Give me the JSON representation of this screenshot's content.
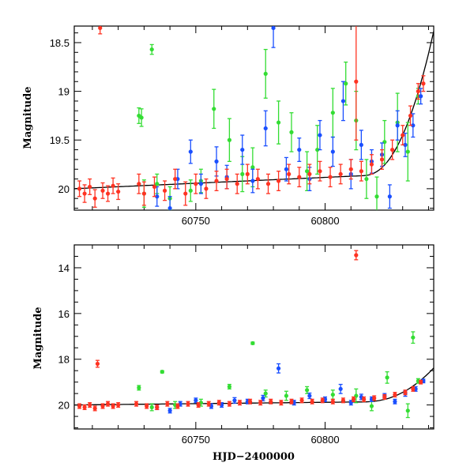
{
  "colors": {
    "green": "#33dd33",
    "blue": "#1a4fff",
    "red": "#ff3322",
    "model": "#000000"
  },
  "chart_data": [
    {
      "type": "scatter",
      "panel": "top",
      "ylabel": "Magnitude",
      "xlabel": "",
      "xlim": [
        60703,
        60842
      ],
      "ylim": [
        20.22,
        18.33
      ],
      "y_inverted": true,
      "grid": false,
      "xticks": [
        {
          "v": 60750,
          "label": "60750"
        },
        {
          "v": 60800,
          "label": "60800"
        }
      ],
      "yticks": [
        {
          "v": 18.5,
          "label": "18.5"
        },
        {
          "v": 19,
          "label": "19"
        },
        {
          "v": 19.5,
          "label": "19.5"
        },
        {
          "v": 20,
          "label": "20"
        }
      ],
      "series": [
        {
          "color": "green",
          "points": [
            [
              60728,
              19.25,
              0.08
            ],
            [
              60729,
              19.27,
              0.09
            ],
            [
              60733,
              18.57,
              0.05
            ],
            [
              60730,
              20.05,
              0.14
            ],
            [
              60735,
              19.95,
              0.1
            ],
            [
              60740,
              20.1,
              0.12
            ],
            [
              60748,
              20.02,
              0.11
            ],
            [
              60752,
              19.92,
              0.12
            ],
            [
              60757,
              19.18,
              0.2
            ],
            [
              60763,
              19.5,
              0.22
            ],
            [
              60768,
              19.85,
              0.18
            ],
            [
              60772,
              19.78,
              0.2
            ],
            [
              60777,
              18.82,
              0.25
            ],
            [
              60782,
              19.32,
              0.22
            ],
            [
              60787,
              19.42,
              0.2
            ],
            [
              60793,
              19.82,
              0.2
            ],
            [
              60797,
              19.6,
              0.25
            ],
            [
              60803,
              19.22,
              0.25
            ],
            [
              60808,
              18.92,
              0.22
            ],
            [
              60812,
              19.3,
              0.3
            ],
            [
              60816,
              19.9,
              0.2
            ],
            [
              60820,
              20.08,
              0.2
            ],
            [
              60823,
              19.52,
              0.22
            ],
            [
              60828,
              19.32,
              0.3
            ],
            [
              60832,
              19.62,
              0.3
            ],
            [
              60836,
              19.05,
              0.08
            ]
          ]
        },
        {
          "color": "blue",
          "points": [
            [
              60735,
              20.08,
              0.1
            ],
            [
              60740,
              20.2,
              0.12
            ],
            [
              60743,
              19.9,
              0.1
            ],
            [
              60748,
              19.62,
              0.12
            ],
            [
              60752,
              19.95,
              0.1
            ],
            [
              60758,
              19.72,
              0.15
            ],
            [
              60762,
              19.88,
              0.12
            ],
            [
              60768,
              19.6,
              0.15
            ],
            [
              60772,
              19.92,
              0.12
            ],
            [
              60777,
              19.38,
              0.18
            ],
            [
              60780,
              18.35,
              0.2
            ],
            [
              60785,
              19.8,
              0.12
            ],
            [
              60790,
              19.6,
              0.12
            ],
            [
              60794,
              19.9,
              0.12
            ],
            [
              60798,
              19.45,
              0.15
            ],
            [
              60803,
              19.62,
              0.15
            ],
            [
              60807,
              19.1,
              0.2
            ],
            [
              60810,
              19.85,
              0.15
            ],
            [
              60814,
              19.55,
              0.15
            ],
            [
              60818,
              19.72,
              0.12
            ],
            [
              60822,
              19.65,
              0.12
            ],
            [
              60825,
              20.08,
              0.12
            ],
            [
              60828,
              19.35,
              0.15
            ],
            [
              60831,
              19.55,
              0.12
            ],
            [
              60834,
              19.35,
              0.12
            ],
            [
              60837,
              19.05,
              0.08
            ]
          ]
        },
        {
          "color": "red",
          "points": [
            [
              60705,
              20.0,
              0.08
            ],
            [
              60707,
              20.05,
              0.09
            ],
            [
              60709,
              19.98,
              0.08
            ],
            [
              60711,
              20.1,
              0.09
            ],
            [
              60713,
              18.35,
              0.06
            ],
            [
              60714,
              20.02,
              0.08
            ],
            [
              60716,
              20.05,
              0.08
            ],
            [
              60718,
              19.97,
              0.08
            ],
            [
              60720,
              20.03,
              0.08
            ],
            [
              60728,
              19.95,
              0.1
            ],
            [
              60730,
              20.05,
              0.12
            ],
            [
              60734,
              19.98,
              0.1
            ],
            [
              60738,
              20.02,
              0.1
            ],
            [
              60742,
              19.9,
              0.1
            ],
            [
              60746,
              20.05,
              0.12
            ],
            [
              60750,
              19.95,
              0.1
            ],
            [
              60754,
              20.0,
              0.1
            ],
            [
              60758,
              19.92,
              0.1
            ],
            [
              60762,
              19.9,
              0.1
            ],
            [
              60766,
              19.95,
              0.1
            ],
            [
              60770,
              19.85,
              0.1
            ],
            [
              60774,
              19.9,
              0.1
            ],
            [
              60778,
              19.95,
              0.1
            ],
            [
              60782,
              19.92,
              0.1
            ],
            [
              60786,
              19.85,
              0.1
            ],
            [
              60790,
              19.88,
              0.1
            ],
            [
              60794,
              19.85,
              0.1
            ],
            [
              60798,
              19.82,
              0.1
            ],
            [
              60802,
              19.88,
              0.1
            ],
            [
              60806,
              19.85,
              0.1
            ],
            [
              60810,
              19.8,
              0.1
            ],
            [
              60812,
              18.9,
              0.6
            ],
            [
              60814,
              19.82,
              0.1
            ],
            [
              60818,
              19.75,
              0.1
            ],
            [
              60822,
              19.7,
              0.1
            ],
            [
              60826,
              19.6,
              0.1
            ],
            [
              60830,
              19.45,
              0.1
            ],
            [
              60833,
              19.25,
              0.1
            ],
            [
              60836,
              19.0,
              0.08
            ],
            [
              60838,
              18.92,
              0.08
            ]
          ]
        }
      ]
    },
    {
      "type": "scatter",
      "panel": "bottom",
      "ylabel": "Magnitude",
      "xlabel": "HJD−2400000",
      "xlim": [
        60703,
        60842
      ],
      "ylim": [
        21.05,
        13.0
      ],
      "y_inverted": true,
      "grid": false,
      "xticks": [
        {
          "v": 60750,
          "label": "60750"
        },
        {
          "v": 60800,
          "label": "60800"
        }
      ],
      "yticks": [
        {
          "v": 14,
          "label": "14"
        },
        {
          "v": 16,
          "label": "16"
        },
        {
          "v": 18,
          "label": "18"
        },
        {
          "v": 20,
          "label": "20"
        }
      ],
      "series": [
        {
          "color": "green",
          "points": [
            [
              60728,
              19.25,
              0.1
            ],
            [
              60737,
              18.55,
              0.05
            ],
            [
              60733,
              20.1,
              0.15
            ],
            [
              60742,
              20.0,
              0.15
            ],
            [
              60752,
              19.9,
              0.15
            ],
            [
              60763,
              19.2,
              0.1
            ],
            [
              60772,
              17.3,
              0.05
            ],
            [
              60777,
              19.5,
              0.15
            ],
            [
              60785,
              19.6,
              0.2
            ],
            [
              60793,
              19.35,
              0.15
            ],
            [
              60803,
              19.55,
              0.2
            ],
            [
              60812,
              19.6,
              0.3
            ],
            [
              60818,
              20.05,
              0.2
            ],
            [
              60824,
              18.8,
              0.25
            ],
            [
              60832,
              20.25,
              0.3
            ],
            [
              60834,
              17.05,
              0.25
            ],
            [
              60836,
              18.95,
              0.1
            ]
          ]
        },
        {
          "color": "blue",
          "points": [
            [
              60735,
              20.1,
              0.1
            ],
            [
              60740,
              20.25,
              0.1
            ],
            [
              60744,
              19.95,
              0.1
            ],
            [
              60750,
              19.8,
              0.1
            ],
            [
              60756,
              20.05,
              0.1
            ],
            [
              60760,
              20.0,
              0.1
            ],
            [
              60765,
              19.8,
              0.12
            ],
            [
              60770,
              19.85,
              0.1
            ],
            [
              60776,
              19.7,
              0.12
            ],
            [
              60782,
              18.4,
              0.2
            ],
            [
              60788,
              19.9,
              0.1
            ],
            [
              60794,
              19.6,
              0.12
            ],
            [
              60800,
              19.75,
              0.1
            ],
            [
              60806,
              19.3,
              0.2
            ],
            [
              60810,
              19.9,
              0.1
            ],
            [
              60814,
              19.65,
              0.12
            ],
            [
              60818,
              19.75,
              0.1
            ],
            [
              60823,
              19.6,
              0.1
            ],
            [
              60827,
              19.85,
              0.1
            ],
            [
              60831,
              19.5,
              0.12
            ],
            [
              60835,
              19.3,
              0.1
            ],
            [
              60838,
              18.95,
              0.08
            ]
          ]
        },
        {
          "color": "red",
          "points": [
            [
              60705,
              20.05,
              0.1
            ],
            [
              60707,
              20.1,
              0.1
            ],
            [
              60709,
              20.0,
              0.1
            ],
            [
              60711,
              20.15,
              0.1
            ],
            [
              60712,
              18.2,
              0.15
            ],
            [
              60714,
              20.05,
              0.1
            ],
            [
              60716,
              19.95,
              0.1
            ],
            [
              60718,
              20.05,
              0.1
            ],
            [
              60720,
              20.0,
              0.1
            ],
            [
              60727,
              19.95,
              0.1
            ],
            [
              60731,
              20.05,
              0.1
            ],
            [
              60735,
              20.1,
              0.1
            ],
            [
              60739,
              19.95,
              0.1
            ],
            [
              60743,
              20.05,
              0.1
            ],
            [
              60747,
              19.95,
              0.1
            ],
            [
              60751,
              20.0,
              0.1
            ],
            [
              60755,
              19.95,
              0.1
            ],
            [
              60759,
              19.9,
              0.1
            ],
            [
              60763,
              19.95,
              0.1
            ],
            [
              60767,
              19.9,
              0.1
            ],
            [
              60771,
              19.85,
              0.1
            ],
            [
              60775,
              19.9,
              0.1
            ],
            [
              60779,
              19.85,
              0.1
            ],
            [
              60783,
              19.9,
              0.1
            ],
            [
              60787,
              19.85,
              0.1
            ],
            [
              60791,
              19.8,
              0.1
            ],
            [
              60795,
              19.85,
              0.1
            ],
            [
              60799,
              19.8,
              0.1
            ],
            [
              60803,
              19.85,
              0.1
            ],
            [
              60807,
              19.8,
              0.1
            ],
            [
              60811,
              19.75,
              0.1
            ],
            [
              60812,
              13.45,
              0.2
            ],
            [
              60815,
              19.75,
              0.1
            ],
            [
              60819,
              19.7,
              0.1
            ],
            [
              60823,
              19.65,
              0.1
            ],
            [
              60827,
              19.55,
              0.1
            ],
            [
              60831,
              19.45,
              0.1
            ],
            [
              60834,
              19.3,
              0.1
            ],
            [
              60837,
              19.0,
              0.08
            ]
          ]
        }
      ]
    }
  ]
}
